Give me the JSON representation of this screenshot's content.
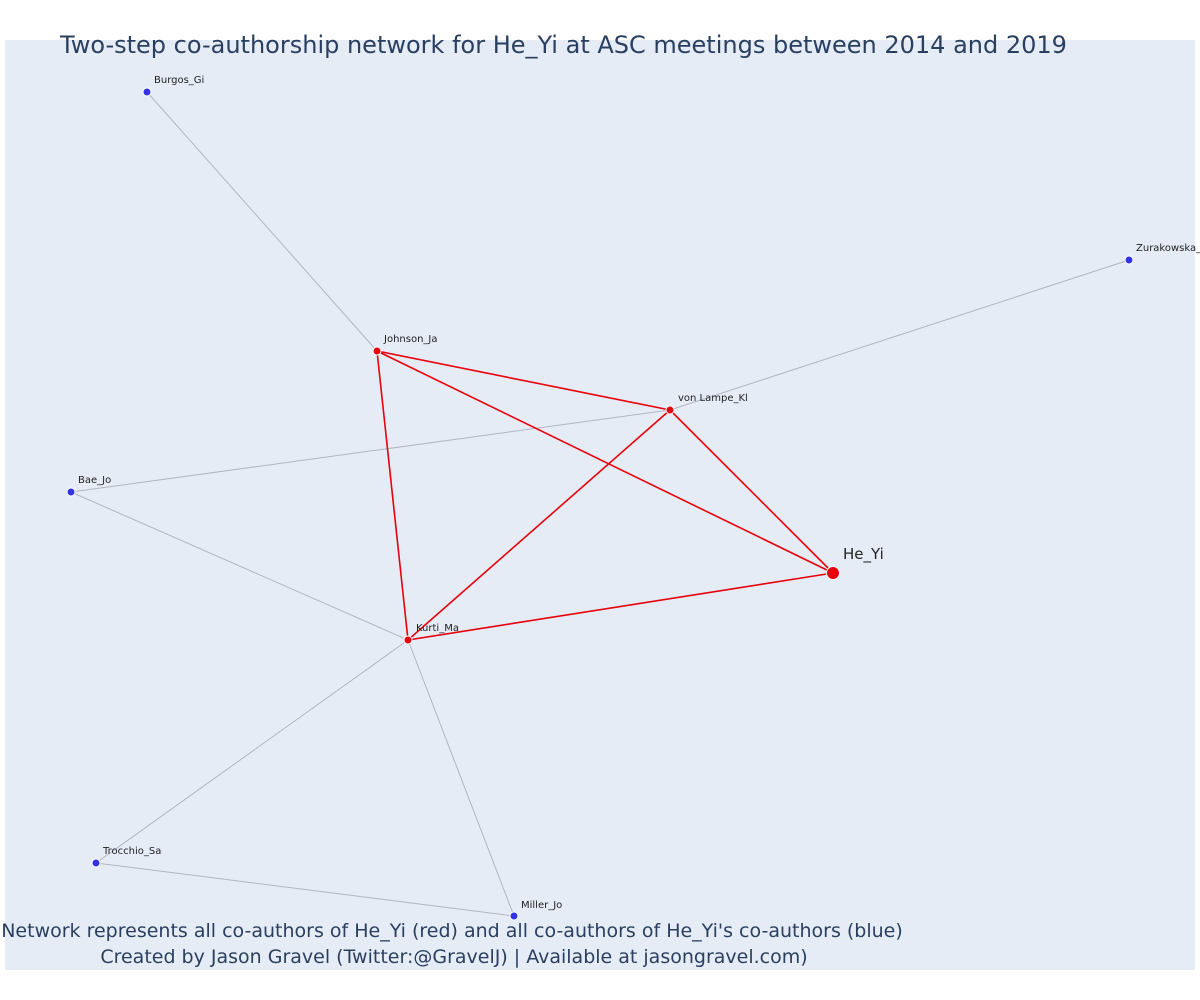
{
  "title": "Two-step co-authorship network for He_Yi at ASC meetings between 2014 and 2019",
  "caption_line1": "Network represents all co-authors of He_Yi (red) and all co-authors of He_Yi's co-authors (blue)",
  "caption_line2": "Created by Jason Gravel (Twitter:@GravelJ) | Available at jasongravel.com)",
  "colors": {
    "background": "#e5ecf6",
    "primary_node": "#e8000b",
    "secondary_node": "#3333e6",
    "primary_edge": "#e8000b",
    "secondary_edge": "#b4b4c3"
  },
  "nodes": [
    {
      "id": "He_Yi",
      "label": "He_Yi",
      "group": "focal"
    },
    {
      "id": "Johnson_Ja",
      "label": "Johnson_Ja",
      "group": "coauthor"
    },
    {
      "id": "von_Lampe_Kl",
      "label": "von Lampe_Kl",
      "group": "coauthor"
    },
    {
      "id": "Kurti_Ma",
      "label": "Kurti_Ma",
      "group": "coauthor"
    },
    {
      "id": "Burgos_Gi",
      "label": "Burgos_Gi",
      "group": "second"
    },
    {
      "id": "Zurakowska",
      "label": "Zurakowska_",
      "group": "second"
    },
    {
      "id": "Bae_Jo",
      "label": "Bae_Jo",
      "group": "second"
    },
    {
      "id": "Trocchio_Sa",
      "label": "Trocchio_Sa",
      "group": "second"
    },
    {
      "id": "Miller_Jo",
      "label": "Miller_Jo",
      "group": "second"
    }
  ],
  "edges": [
    {
      "source": "He_Yi",
      "target": "Johnson_Ja",
      "type": "primary"
    },
    {
      "source": "He_Yi",
      "target": "von_Lampe_Kl",
      "type": "primary"
    },
    {
      "source": "He_Yi",
      "target": "Kurti_Ma",
      "type": "primary"
    },
    {
      "source": "Johnson_Ja",
      "target": "von_Lampe_Kl",
      "type": "primary"
    },
    {
      "source": "Johnson_Ja",
      "target": "Kurti_Ma",
      "type": "primary"
    },
    {
      "source": "von_Lampe_Kl",
      "target": "Kurti_Ma",
      "type": "primary"
    },
    {
      "source": "Johnson_Ja",
      "target": "Burgos_Gi",
      "type": "secondary"
    },
    {
      "source": "von_Lampe_Kl",
      "target": "Zurakowska",
      "type": "secondary"
    },
    {
      "source": "von_Lampe_Kl",
      "target": "Bae_Jo",
      "type": "secondary"
    },
    {
      "source": "Kurti_Ma",
      "target": "Bae_Jo",
      "type": "secondary"
    },
    {
      "source": "Kurti_Ma",
      "target": "Trocchio_Sa",
      "type": "secondary"
    },
    {
      "source": "Kurti_Ma",
      "target": "Miller_Jo",
      "type": "secondary"
    },
    {
      "source": "Trocchio_Sa",
      "target": "Miller_Jo",
      "type": "secondary"
    }
  ]
}
